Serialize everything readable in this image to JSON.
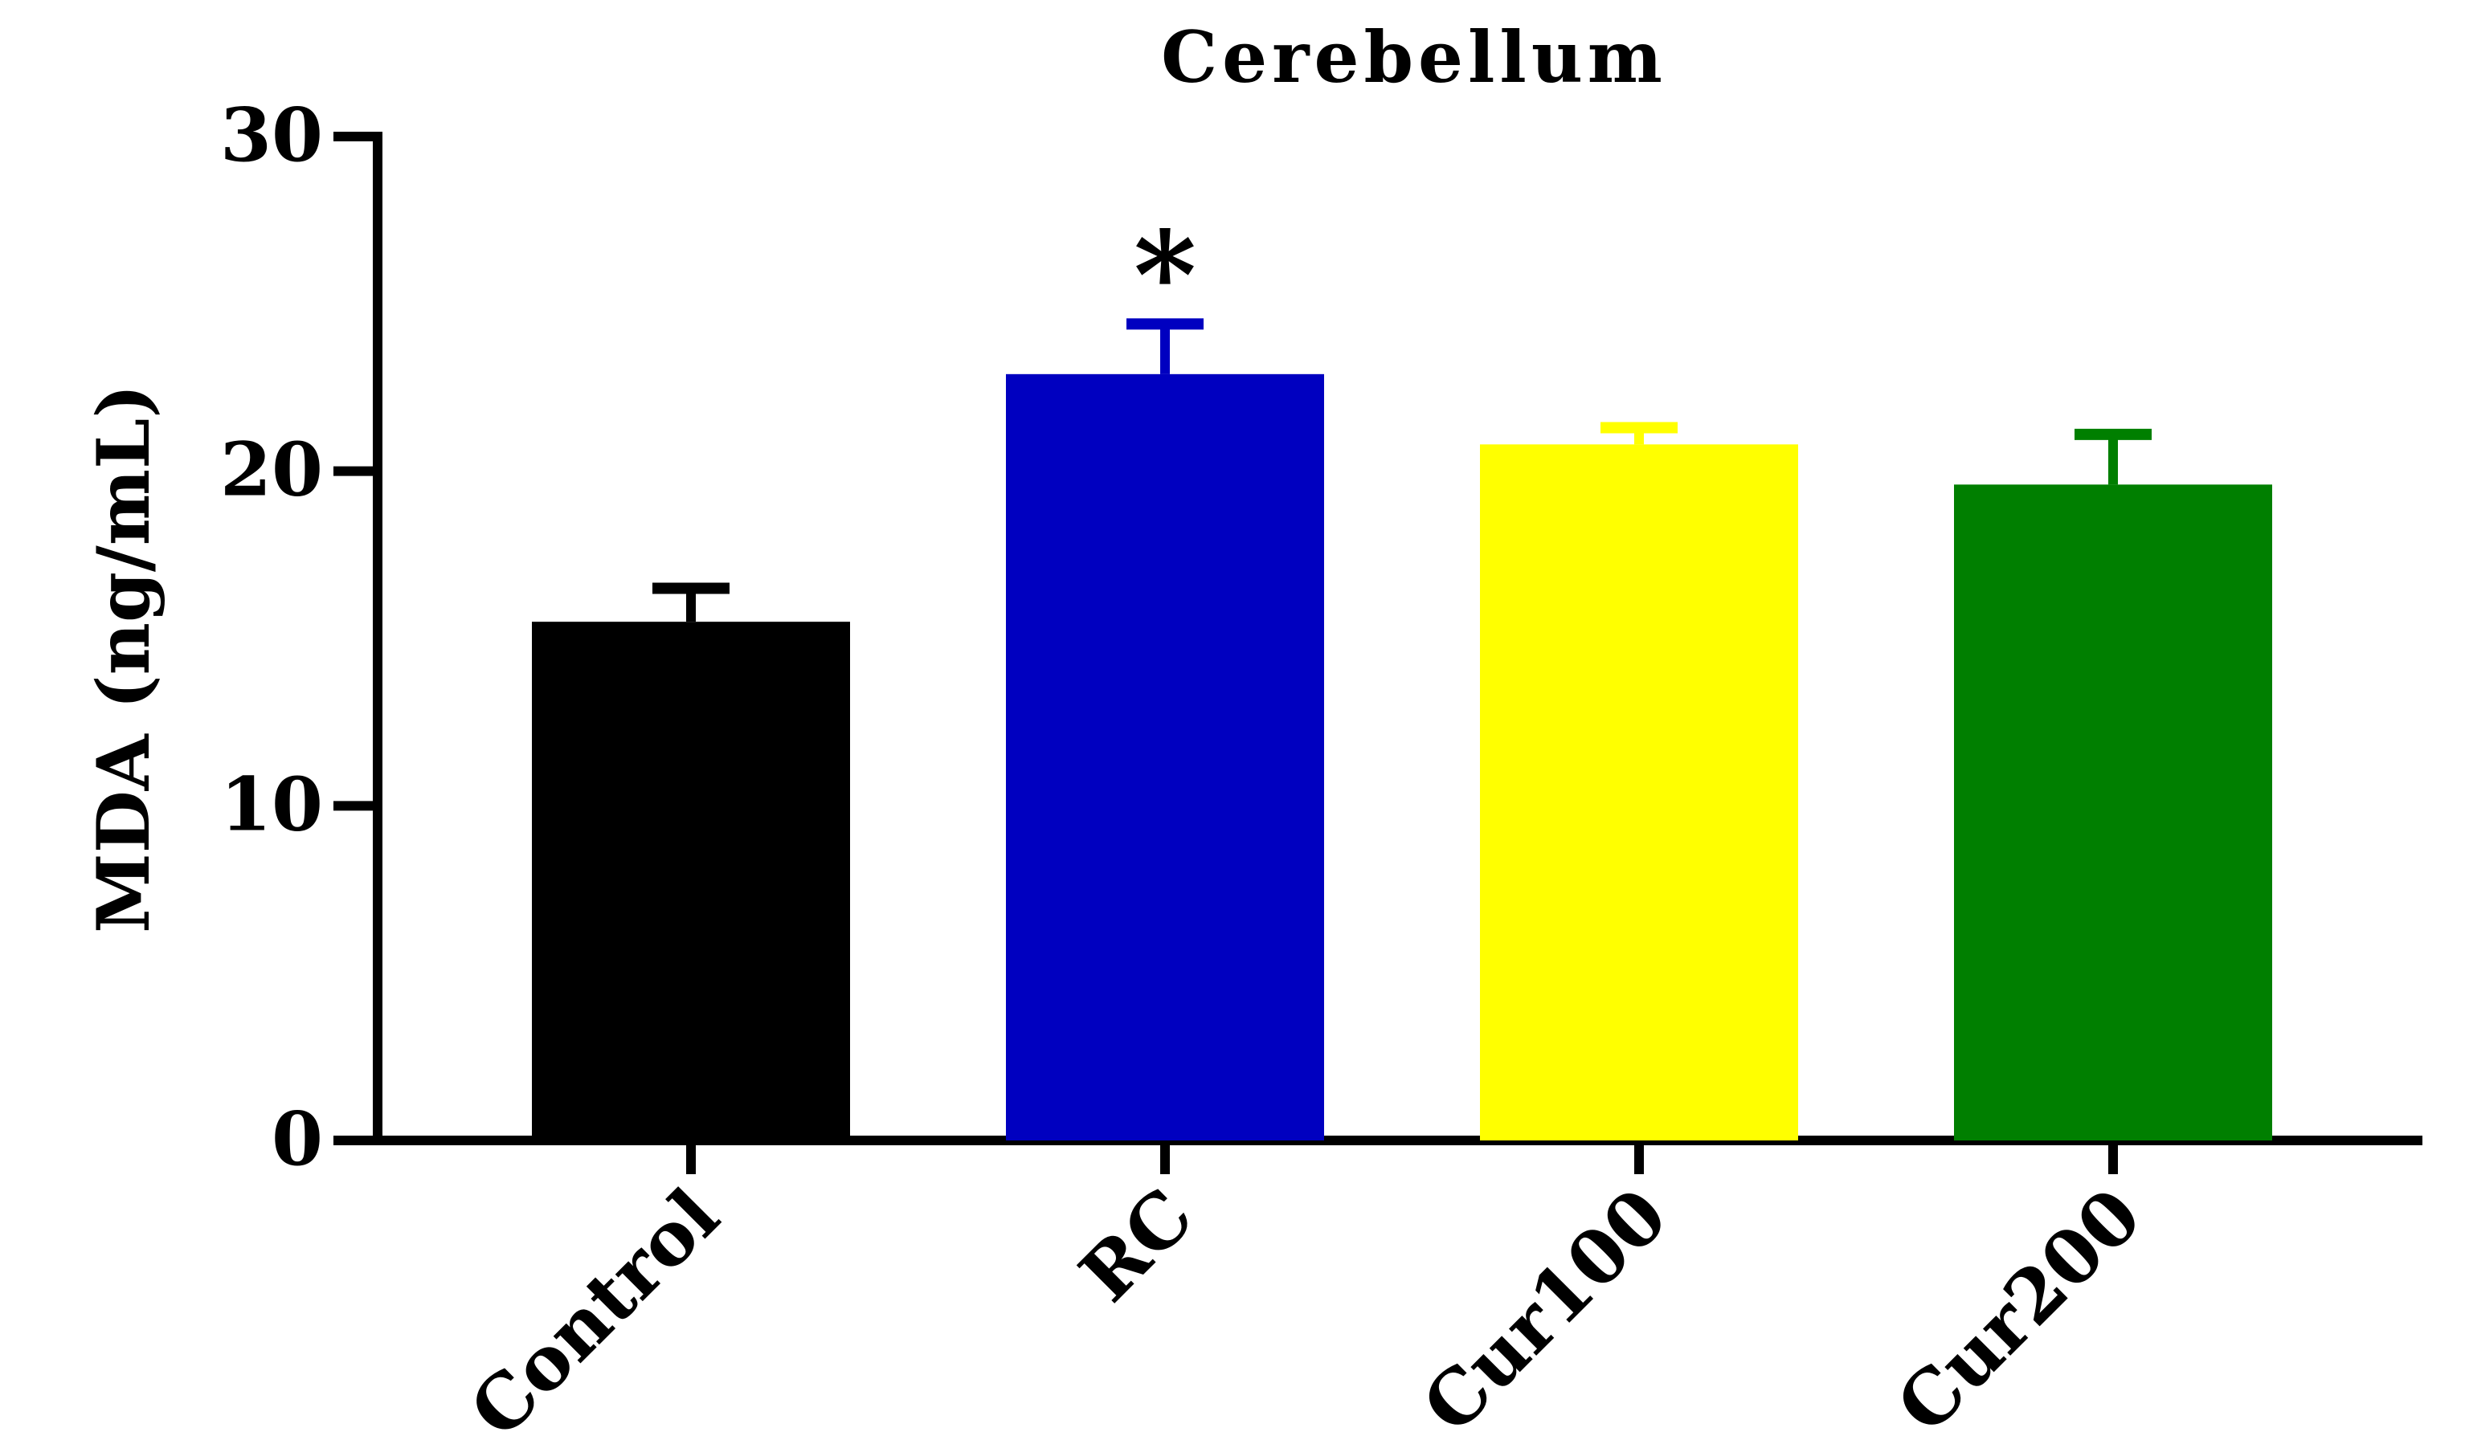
{
  "chart_data": {
    "type": "bar",
    "title": "Cerebellum",
    "xlabel": "",
    "ylabel": "MDA (ng/mL)",
    "ylim": [
      0,
      30
    ],
    "yticks": [
      0,
      10,
      20,
      30
    ],
    "categories": [
      "Control",
      "RC",
      "Cur100",
      "Cur200"
    ],
    "values": [
      15.5,
      22.9,
      20.8,
      19.6
    ],
    "errors": [
      1.0,
      1.5,
      0.5,
      1.5
    ],
    "colors": [
      "#000000",
      "#0000C0",
      "#FFFF00",
      "#007F00"
    ],
    "annotations": [
      "",
      "*",
      "",
      ""
    ],
    "grid": false,
    "legend": "none"
  }
}
